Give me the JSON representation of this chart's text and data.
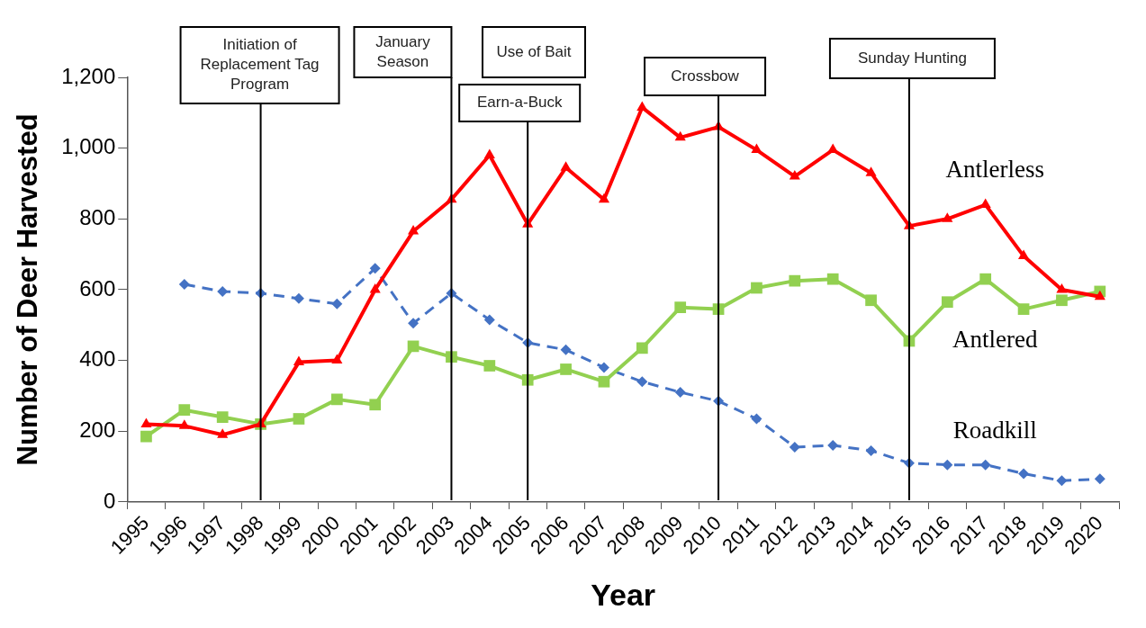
{
  "chart_data": {
    "type": "line",
    "xlabel": "Year",
    "ylabel": "Number of Deer Harvested",
    "categories": [
      "1995",
      "1996",
      "1997",
      "1998",
      "1999",
      "2000",
      "2001",
      "2002",
      "2003",
      "2004",
      "2005",
      "2006",
      "2007",
      "2008",
      "2009",
      "2010",
      "2011",
      "2012",
      "2013",
      "2014",
      "2015",
      "2016",
      "2017",
      "2018",
      "2019",
      "2020"
    ],
    "series": [
      {
        "name": "Antlerless",
        "color": "#ff0000",
        "marker": "triangle",
        "line_style": "solid",
        "values": [
          220,
          215,
          190,
          220,
          395,
          400,
          600,
          765,
          855,
          980,
          785,
          945,
          855,
          1115,
          1030,
          1060,
          995,
          920,
          995,
          930,
          780,
          800,
          840,
          695,
          600,
          580
        ]
      },
      {
        "name": "Antlered",
        "color": "#92d050",
        "marker": "square",
        "line_style": "solid",
        "values": [
          185,
          260,
          240,
          220,
          235,
          290,
          275,
          440,
          410,
          385,
          345,
          375,
          340,
          435,
          550,
          545,
          605,
          625,
          630,
          570,
          455,
          565,
          630,
          545,
          570,
          595
        ]
      },
      {
        "name": "Roadkill",
        "color": "#4472c4",
        "marker": "diamond",
        "line_style": "dashed",
        "values": [
          null,
          615,
          595,
          590,
          575,
          560,
          660,
          505,
          590,
          515,
          450,
          430,
          380,
          340,
          310,
          285,
          235,
          155,
          160,
          145,
          110,
          105,
          105,
          80,
          60,
          65
        ]
      }
    ],
    "ylim": [
      0,
      1200
    ],
    "yticks": [
      {
        "value": 0,
        "label": "0"
      },
      {
        "value": 200,
        "label": "200"
      },
      {
        "value": 400,
        "label": "400"
      },
      {
        "value": 600,
        "label": "600"
      },
      {
        "value": 800,
        "label": "800"
      },
      {
        "value": 1000,
        "label": "1,000"
      },
      {
        "value": 1200,
        "label": "1,200"
      }
    ],
    "ref_lines": [
      {
        "axis": "x",
        "value": "1998",
        "label": "Initiation of Replacement Tag Program",
        "color": "#000000"
      },
      {
        "axis": "x",
        "value": "2003",
        "label": "January Season",
        "color": "#000000"
      },
      {
        "axis": "x",
        "value": "2005",
        "label": "Earn-a-Buck",
        "color": "#000000"
      },
      {
        "axis": "x",
        "value": "2010",
        "label": "Crossbow",
        "color": "#000000"
      },
      {
        "axis": "x",
        "value": "2015",
        "label": "Sunday Hunting",
        "color": "#000000"
      }
    ],
    "annotations": [
      "Use of Bait"
    ],
    "grid": false,
    "legend": false
  }
}
